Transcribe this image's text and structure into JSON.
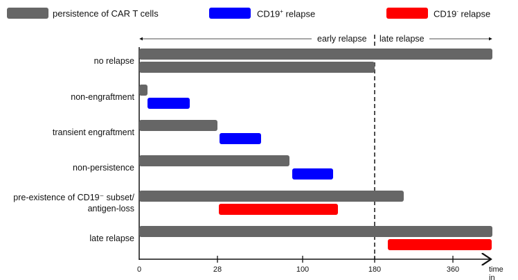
{
  "colors": {
    "persistence": "#666666",
    "cd19_pos": "#0000ff",
    "cd19_neg": "#ff0000",
    "axis": "#111111"
  },
  "legend": [
    {
      "key": "persistence",
      "label": "persistence of CAR T cells",
      "sup": "",
      "suffix": ""
    },
    {
      "key": "cd19_pos",
      "label": "CD19",
      "sup": "+",
      "suffix": " relapse"
    },
    {
      "key": "cd19_neg",
      "label": "CD19",
      "sup": "-",
      "suffix": " relapse"
    }
  ],
  "phases": {
    "early": "early relapse",
    "late": "late relapse",
    "boundary_day": 180
  },
  "chart_data": {
    "type": "gantt",
    "xlabel": "time in days",
    "xticks": [
      0,
      28,
      100,
      180,
      360
    ],
    "xtick_labels": [
      "0",
      "28",
      "100",
      "180",
      "360"
    ],
    "xlim": [
      0,
      450
    ],
    "rows": [
      {
        "label": "no relapse",
        "bars": [
          {
            "type": "persistence",
            "start": 0,
            "end": 450
          },
          {
            "type": "persistence",
            "start": 0,
            "end": 180
          }
        ]
      },
      {
        "label": "non-engraftment",
        "bars": [
          {
            "type": "persistence",
            "start": 0,
            "end": 3
          },
          {
            "type": "cd19_pos",
            "start": 3,
            "end": 18
          }
        ]
      },
      {
        "label": "transient engraftment",
        "bars": [
          {
            "type": "persistence",
            "start": 0,
            "end": 28
          },
          {
            "type": "cd19_pos",
            "start": 30,
            "end": 65
          }
        ]
      },
      {
        "label": "non-persistence",
        "bars": [
          {
            "type": "persistence",
            "start": 0,
            "end": 89
          },
          {
            "type": "cd19_pos",
            "start": 91,
            "end": 134
          }
        ]
      },
      {
        "label": "pre-existence of CD19⁻ subset/\nantigen-loss",
        "bars": [
          {
            "type": "persistence",
            "start": 0,
            "end": 247
          },
          {
            "type": "cd19_neg",
            "start": 29,
            "end": 139
          }
        ]
      },
      {
        "label": "late relapse",
        "bars": [
          {
            "type": "persistence",
            "start": 0,
            "end": 450
          },
          {
            "type": "cd19_neg",
            "start": 210,
            "end": 450
          }
        ]
      }
    ]
  }
}
